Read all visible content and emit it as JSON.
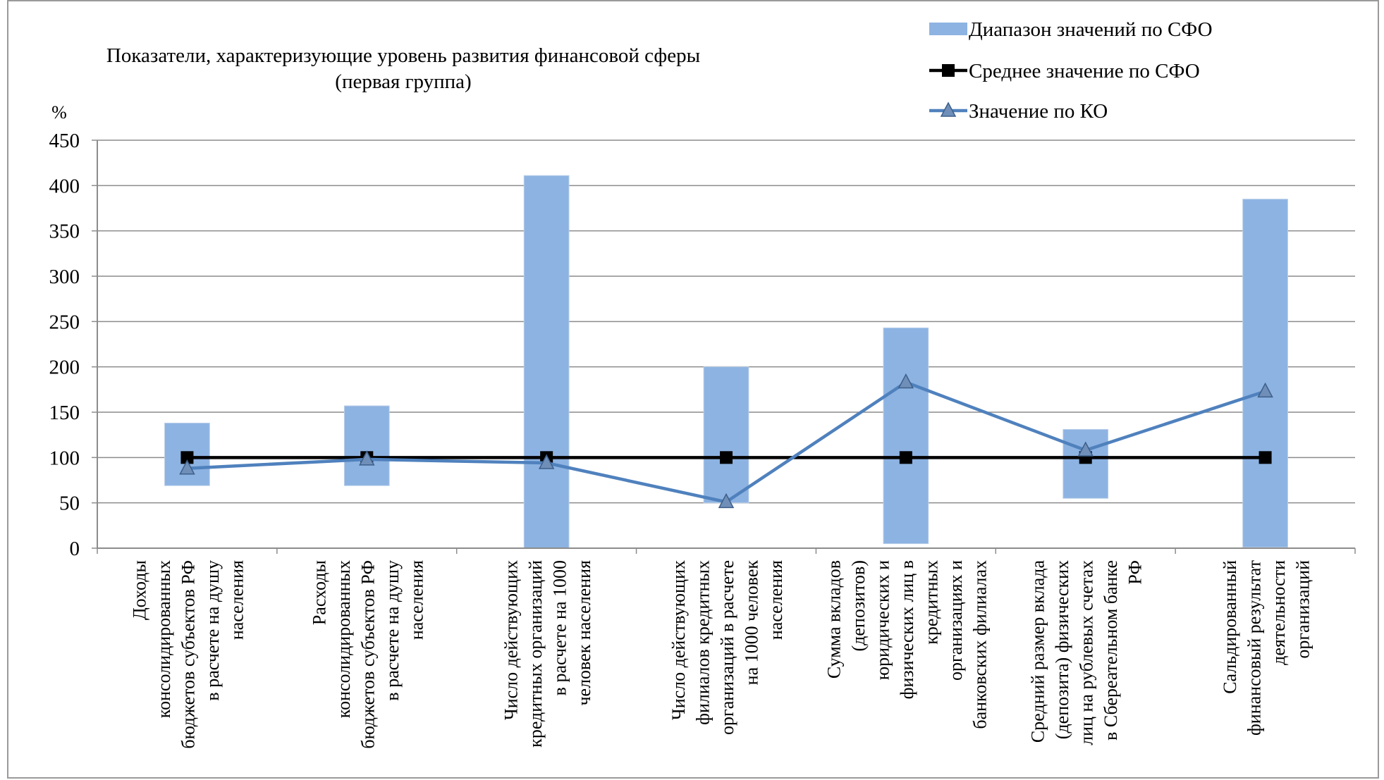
{
  "chart_data": {
    "type": "bar",
    "title": "Показатели, характеризующие уровень развития финансовой сферы (первая группа)",
    "title_lines": [
      "Показатели, характеризующие уровень развития финансовой сферы",
      "(первая группа)"
    ],
    "ylabel": "%",
    "ylim": [
      0,
      450
    ],
    "yticks": [
      0,
      50,
      100,
      150,
      200,
      250,
      300,
      350,
      400,
      450
    ],
    "grid": true,
    "legend_position": "top-right",
    "categories": [
      [
        "Доходы",
        "консолидированных",
        "бюджетов субъектов РФ",
        "в расчете на душу",
        "населения"
      ],
      [
        "Расходы",
        "консолидированных",
        "бюджетов субъектов РФ",
        "в расчете на душу",
        "населения"
      ],
      [
        "Число действующих",
        "кредитных организаций",
        "в расчете на 1000",
        "человек населения"
      ],
      [
        "Число действующих",
        "филиалов кредитных",
        "организаций в расчете",
        "на 1000 человек",
        "населения"
      ],
      [
        "Сумма вкладов",
        "(депозитов)",
        "юридических и",
        "физических лиц в",
        "кредитных",
        "организациях и",
        "банковских филиалах"
      ],
      [
        "Средний размер вклада",
        "(депозита) физических",
        "лиц на рублевых счетах",
        "в Сбереательном банке",
        "РФ"
      ],
      [
        "Сальдированный",
        "финансовый результат",
        "деятельности",
        "организаций"
      ]
    ],
    "series": [
      {
        "name": "Диапазон значений по СФО",
        "kind": "range-bar",
        "color": "#8db3e2",
        "low": [
          69,
          69,
          0,
          50,
          5,
          55,
          1
        ],
        "high": [
          138,
          157,
          411,
          200,
          243,
          131,
          385
        ]
      },
      {
        "name": "Среднее значение по СФО",
        "kind": "line",
        "marker": "square",
        "color": "#000000",
        "values": [
          100,
          100,
          100,
          100,
          100,
          100,
          100
        ]
      },
      {
        "name": "Значение по КО",
        "kind": "line",
        "marker": "triangle",
        "color": "#4f81bd",
        "values": [
          88,
          98,
          94,
          51,
          183,
          108,
          173
        ]
      }
    ]
  }
}
